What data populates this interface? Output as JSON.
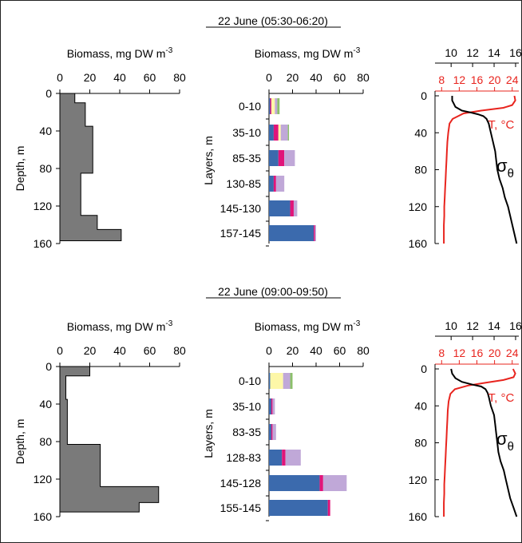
{
  "colors": {
    "step_fill": "#7a7a7a",
    "blue": "#3b6aad",
    "magenta": "#e0157a",
    "lavender": "#c0a8d8",
    "yellow": "#fdf7a8",
    "green": "#8bbf6a",
    "temperature": "#e8241e",
    "density": "#000000"
  },
  "panels": [
    {
      "title": "22 June (05:30-06:20)",
      "profile": {
        "xlabel_base": "Biomass, mg DW m",
        "xlabel_sup": "-3",
        "ylabel": "Depth, m",
        "xticks": [
          "0",
          "20",
          "40",
          "60",
          "80"
        ],
        "yticks": [
          "0",
          "40",
          "80",
          "120",
          "160"
        ]
      },
      "layers": {
        "xlabel_base": "Biomass, mg DW m",
        "xlabel_sup": "-3",
        "ylabel": "Layers, m",
        "xticks": [
          "0",
          "20",
          "40",
          "60",
          "80"
        ]
      },
      "ctd": {
        "top_ticks": [
          "10",
          "12",
          "14",
          "16"
        ],
        "red_ticks": [
          "8",
          "12",
          "16",
          "20",
          "24"
        ],
        "yticks": [
          "0",
          "40",
          "80",
          "120",
          "160"
        ],
        "t_label": "T, °C",
        "sigma_label": "σ",
        "sigma_sub": "θ"
      }
    },
    {
      "title": "22 June (09:00-09:50)",
      "profile": {
        "xlabel_base": "Biomass, mg DW m",
        "xlabel_sup": "-3",
        "ylabel": "Depth, m",
        "xticks": [
          "0",
          "20",
          "40",
          "60",
          "80"
        ],
        "yticks": [
          "0",
          "40",
          "80",
          "120",
          "160"
        ]
      },
      "layers": {
        "xlabel_base": "Biomass, mg DW m",
        "xlabel_sup": "-3",
        "ylabel": "Layers, m",
        "xticks": [
          "0",
          "20",
          "40",
          "60",
          "80"
        ]
      },
      "ctd": {
        "top_ticks": [
          "10",
          "12",
          "14",
          "16"
        ],
        "red_ticks": [
          "8",
          "12",
          "16",
          "20",
          "24"
        ],
        "yticks": [
          "0",
          "40",
          "80",
          "120",
          "160"
        ],
        "t_label": "T, °C",
        "sigma_label": "σ",
        "sigma_sub": "θ"
      }
    }
  ],
  "chart_data": [
    {
      "type": "area",
      "panel": "22 June (05:30-06:20) - vertical biomass profile",
      "xlim": [
        0,
        80
      ],
      "ylim": [
        0,
        160
      ],
      "steps": [
        {
          "from": 0,
          "to": 10,
          "value": 10
        },
        {
          "from": 10,
          "to": 35,
          "value": 17
        },
        {
          "from": 35,
          "to": 85,
          "value": 22
        },
        {
          "from": 85,
          "to": 130,
          "value": 14
        },
        {
          "from": 130,
          "to": 145,
          "value": 25
        },
        {
          "from": 145,
          "to": 157,
          "value": 41
        }
      ]
    },
    {
      "type": "bar",
      "panel": "22 June (05:30-06:20) - biomass by layer",
      "xlim": [
        0,
        80
      ],
      "categories": [
        "0-10",
        "35-10",
        "85-35",
        "130-85",
        "145-130",
        "157-145"
      ],
      "series": [
        {
          "color_key": "blue",
          "values": [
            1,
            4,
            8,
            4,
            18,
            38
          ]
        },
        {
          "color_key": "magenta",
          "values": [
            1,
            4,
            5,
            2,
            3,
            1
          ]
        },
        {
          "color_key": "yellow",
          "values": [
            3,
            2,
            0,
            0,
            0,
            0
          ]
        },
        {
          "color_key": "lavender",
          "values": [
            2,
            6,
            9,
            7,
            3,
            1
          ]
        },
        {
          "color_key": "green",
          "values": [
            2,
            1,
            0,
            0,
            0,
            0
          ]
        }
      ]
    },
    {
      "type": "line",
      "panel": "22 June (05:30-06:20) - CTD profile",
      "ylim": [
        0,
        160
      ],
      "x_top_range": [
        8.5,
        16.3
      ],
      "x_red_range": [
        6.5,
        25.5
      ],
      "series": [
        {
          "name": "T, °C",
          "axis": "red",
          "points": [
            [
              24.5,
              0
            ],
            [
              24.7,
              5
            ],
            [
              24,
              10
            ],
            [
              22,
              13
            ],
            [
              17,
              16
            ],
            [
              13,
              19
            ],
            [
              10.5,
              25
            ],
            [
              9.8,
              30
            ],
            [
              9.5,
              40
            ],
            [
              9.3,
              50
            ],
            [
              9.2,
              60
            ],
            [
              9.1,
              70
            ],
            [
              9,
              80
            ],
            [
              8.9,
              90
            ],
            [
              8.8,
              100
            ],
            [
              8.7,
              110
            ],
            [
              8.6,
              120
            ],
            [
              8.6,
              130
            ],
            [
              8.5,
              140
            ],
            [
              8.5,
              150
            ],
            [
              8.5,
              160
            ]
          ]
        },
        {
          "name": "σθ",
          "axis": "top",
          "points": [
            [
              10.1,
              0
            ],
            [
              10.1,
              5
            ],
            [
              10.4,
              12
            ],
            [
              11,
              16
            ],
            [
              11.8,
              18
            ],
            [
              12.5,
              20
            ],
            [
              13,
              22
            ],
            [
              13.3,
              25
            ],
            [
              13.5,
              30
            ],
            [
              13.7,
              40
            ],
            [
              13.9,
              50
            ],
            [
              14.1,
              60
            ],
            [
              14.2,
              70
            ],
            [
              14.3,
              80
            ],
            [
              14.5,
              90
            ],
            [
              14.8,
              100
            ],
            [
              15,
              110
            ],
            [
              15.3,
              120
            ],
            [
              15.5,
              130
            ],
            [
              15.7,
              140
            ],
            [
              15.9,
              150
            ],
            [
              16.1,
              160
            ]
          ]
        }
      ]
    },
    {
      "type": "area",
      "panel": "22 June (09:00-09:50) - vertical biomass profile",
      "xlim": [
        0,
        80
      ],
      "ylim": [
        0,
        160
      ],
      "steps": [
        {
          "from": 0,
          "to": 10,
          "value": 20
        },
        {
          "from": 10,
          "to": 35,
          "value": 4
        },
        {
          "from": 35,
          "to": 83,
          "value": 5
        },
        {
          "from": 83,
          "to": 128,
          "value": 27
        },
        {
          "from": 128,
          "to": 145,
          "value": 66
        },
        {
          "from": 145,
          "to": 155,
          "value": 53
        }
      ]
    },
    {
      "type": "bar",
      "panel": "22 June (09:00-09:50) - biomass by layer",
      "xlim": [
        0,
        80
      ],
      "categories": [
        "0-10",
        "35-10",
        "83-35",
        "128-83",
        "145-128",
        "155-145"
      ],
      "series": [
        {
          "color_key": "blue",
          "values": [
            1,
            2,
            2,
            11,
            43,
            50
          ]
        },
        {
          "color_key": "magenta",
          "values": [
            0,
            1,
            1,
            3,
            3,
            2
          ]
        },
        {
          "color_key": "yellow",
          "values": [
            11,
            0,
            0,
            0,
            0,
            0
          ]
        },
        {
          "color_key": "lavender",
          "values": [
            6,
            2,
            3,
            13,
            20,
            0
          ]
        },
        {
          "color_key": "green",
          "values": [
            2,
            0,
            0,
            0,
            0,
            0
          ]
        }
      ]
    },
    {
      "type": "line",
      "panel": "22 June (09:00-09:50) - CTD profile",
      "ylim": [
        0,
        160
      ],
      "x_top_range": [
        8.5,
        16.3
      ],
      "x_red_range": [
        6.5,
        25.5
      ],
      "series": [
        {
          "name": "T, °C",
          "axis": "red",
          "points": [
            [
              24.2,
              0
            ],
            [
              24.7,
              5
            ],
            [
              24.3,
              9
            ],
            [
              22,
              12
            ],
            [
              18,
              15
            ],
            [
              14,
              18
            ],
            [
              11,
              22
            ],
            [
              10,
              27
            ],
            [
              9.6,
              35
            ],
            [
              9.4,
              45
            ],
            [
              9.3,
              55
            ],
            [
              9.2,
              65
            ],
            [
              9.1,
              75
            ],
            [
              9,
              85
            ],
            [
              8.9,
              95
            ],
            [
              8.8,
              105
            ],
            [
              8.7,
              115
            ],
            [
              8.6,
              125
            ],
            [
              8.6,
              135
            ],
            [
              8.5,
              145
            ],
            [
              8.5,
              160
            ]
          ]
        },
        {
          "name": "σθ",
          "axis": "top",
          "points": [
            [
              10,
              0
            ],
            [
              10.1,
              5
            ],
            [
              10.4,
              10
            ],
            [
              11,
              14
            ],
            [
              12,
              17
            ],
            [
              12.8,
              19
            ],
            [
              13.2,
              22
            ],
            [
              13.4,
              26
            ],
            [
              13.5,
              30
            ],
            [
              13.7,
              40
            ],
            [
              14,
              50
            ],
            [
              14.1,
              60
            ],
            [
              14.2,
              70
            ],
            [
              14.3,
              80
            ],
            [
              14.4,
              90
            ],
            [
              14.6,
              100
            ],
            [
              14.9,
              110
            ],
            [
              15.1,
              120
            ],
            [
              15.3,
              130
            ],
            [
              15.5,
              140
            ],
            [
              15.8,
              150
            ],
            [
              16.1,
              160
            ]
          ]
        }
      ]
    }
  ]
}
